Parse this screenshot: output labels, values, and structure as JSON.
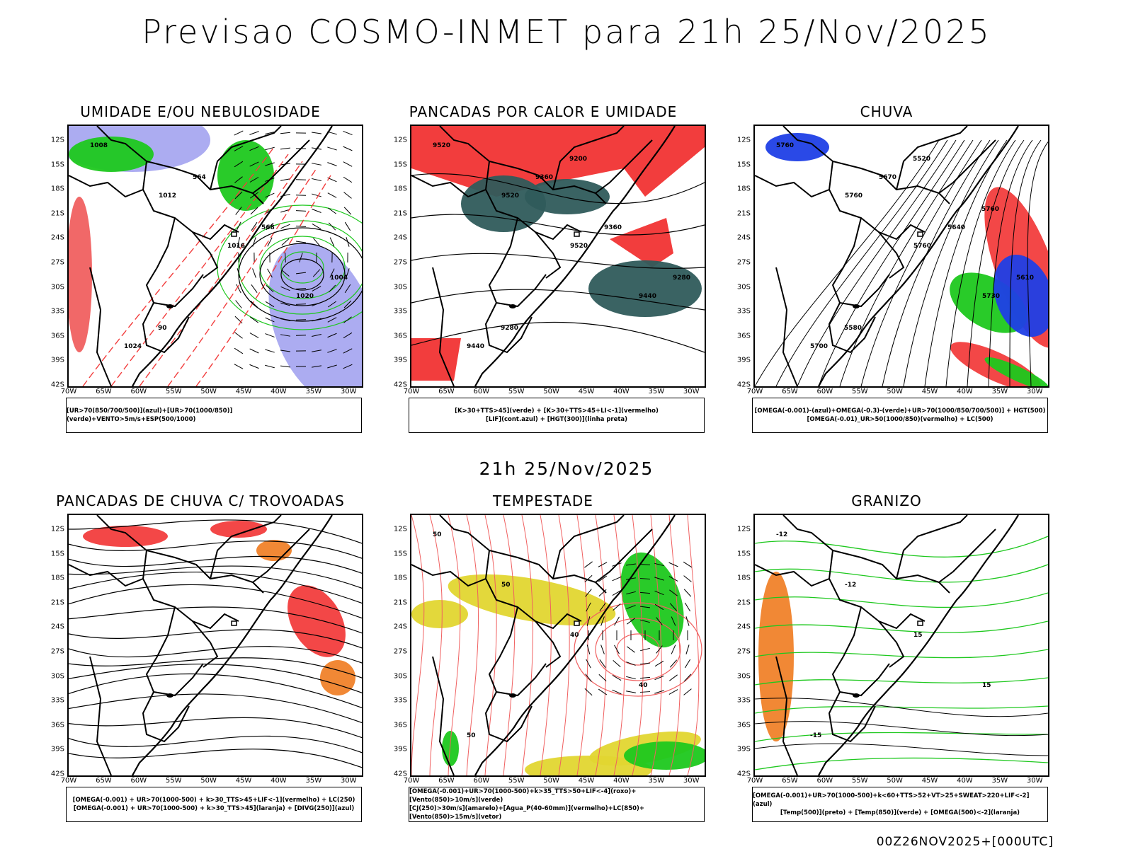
{
  "title": "Previsao COSMO-INMET  para 21h 25/Nov/2025",
  "mid_title": "21h 25/Nov/2025",
  "footer": "00Z26NOV2025+[000UTC]",
  "lat_ticks": [
    "12S",
    "15S",
    "18S",
    "21S",
    "24S",
    "27S",
    "30S",
    "33S",
    "36S",
    "39S",
    "42S"
  ],
  "lon_ticks": [
    "70W",
    "65W",
    "60W",
    "55W",
    "50W",
    "45W",
    "40W",
    "35W",
    "30W"
  ],
  "panels": [
    {
      "title": "UMIDADE E/OU NEBULOSIDADE",
      "legend": [
        "[UR>70(850/700/500)](azul)+[UR>70(1000/850)](verde)+VENTO>5m/s+ESP(500/1000)"
      ],
      "labels": [
        "1008",
        "1012",
        "1016",
        "1020",
        "1024",
        "564",
        "568",
        "1004",
        "90"
      ]
    },
    {
      "title": "PANCADAS POR CALOR E UMIDADE",
      "legend": [
        "[K>30+TTS>45](verde) + [K>30+TTS>45+LI<-1](vermelho)",
        "[LIF](cont.azul) + [HGT(300)](linha preta)"
      ],
      "labels": [
        "9520",
        "9520",
        "9520",
        "9440",
        "9440",
        "9360",
        "9360",
        "9280",
        "9280",
        "9200"
      ]
    },
    {
      "title": "CHUVA",
      "legend": [
        "[OMEGA(-0.001)-(azul)+OMEGA(-0.3)-(verde)+UR>70(1000/850/700/500)] + HGT(500)",
        "[OMEGA(-0.01)_UR>50(1000/850)(vermelho) + LC(500)"
      ],
      "labels": [
        "5760",
        "5760",
        "5760",
        "5730",
        "5700",
        "5670",
        "5640",
        "5610",
        "5580",
        "5520",
        "5760"
      ]
    },
    {
      "title": "PANCADAS DE CHUVA C/ TROVOADAS",
      "legend": [
        "[OMEGA(-0.001) + UR>70(1000-500) + k>30_TTS>45+LIF<-1](vermelho) + LC(250)",
        "[OMEGA(-0.001) + UR>70(1000-500) + k>30_TTS>45](laranja) + [DIVG(250)](azul)"
      ],
      "labels": []
    },
    {
      "title": "TEMPESTADE",
      "legend": [
        "[OMEGA(-0.001)+UR>70(1000-500)+k>35_TTS>50+LIF<-4](roxo)+[Vento(850)>10m/s](verde)",
        "[CJ(250)>30m/s](amarelo)+[Agua_P(40-60mm)](vermelho)+LC(850)+[Vento(850)>15m/s](vetor)"
      ],
      "labels": [
        "50",
        "50",
        "40",
        "40",
        "50"
      ]
    },
    {
      "title": "GRANIZO",
      "legend": [
        "[OMEGA(-0.001)+UR>70(1000-500)+k<60+TTS>52+VT>25+SWEAT>220+LIF<-2](azul)",
        "[Temp(500)](preto) + [Temp(850)](verde) + [OMEGA(500)<-2](laranja)"
      ],
      "labels": [
        "-12",
        "-12",
        "15",
        "15",
        "-15"
      ]
    }
  ],
  "colors": {
    "red": "#f23d3d",
    "green": "#1ec81e",
    "blue": "#1f3fe6",
    "lavender": "#a8a8f0",
    "darkteal": "#2f5b5b",
    "yellow": "#e2d630",
    "orange": "#f0822a",
    "lightred": "#f06060"
  }
}
